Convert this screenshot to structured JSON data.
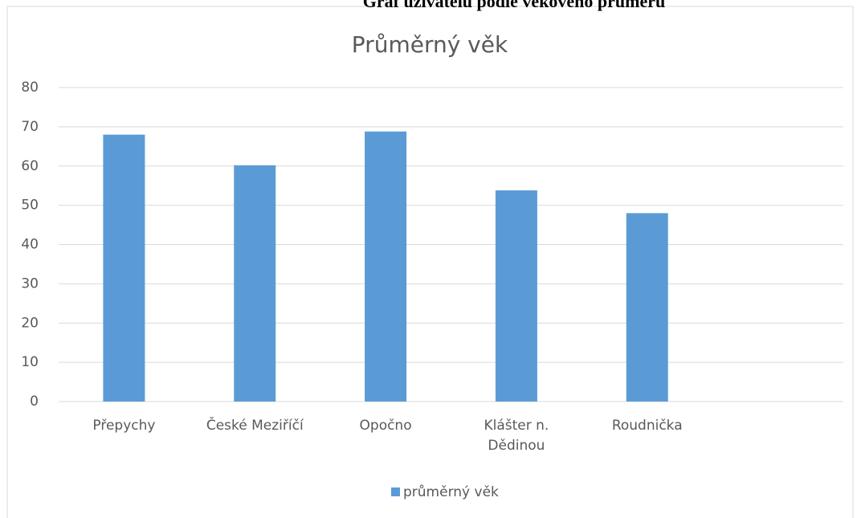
{
  "header": "Graf uživatelů podle věkového průměru",
  "chart_data": {
    "type": "bar",
    "title": "Průměrný věk",
    "categories": [
      "Přepychy",
      "České Meziříčí",
      "Opočno",
      "Klášter n. Dědinou",
      "Roudnička",
      null
    ],
    "series": [
      {
        "name": "průměrný věk",
        "color": "#5b9bd5",
        "values": [
          68,
          60.2,
          68.8,
          53.8,
          48,
          null
        ]
      }
    ],
    "ylim": [
      0,
      80
    ],
    "yticks": [
      0,
      10,
      20,
      30,
      40,
      50,
      60,
      70,
      80
    ],
    "grid": true,
    "legend": "bottom"
  }
}
